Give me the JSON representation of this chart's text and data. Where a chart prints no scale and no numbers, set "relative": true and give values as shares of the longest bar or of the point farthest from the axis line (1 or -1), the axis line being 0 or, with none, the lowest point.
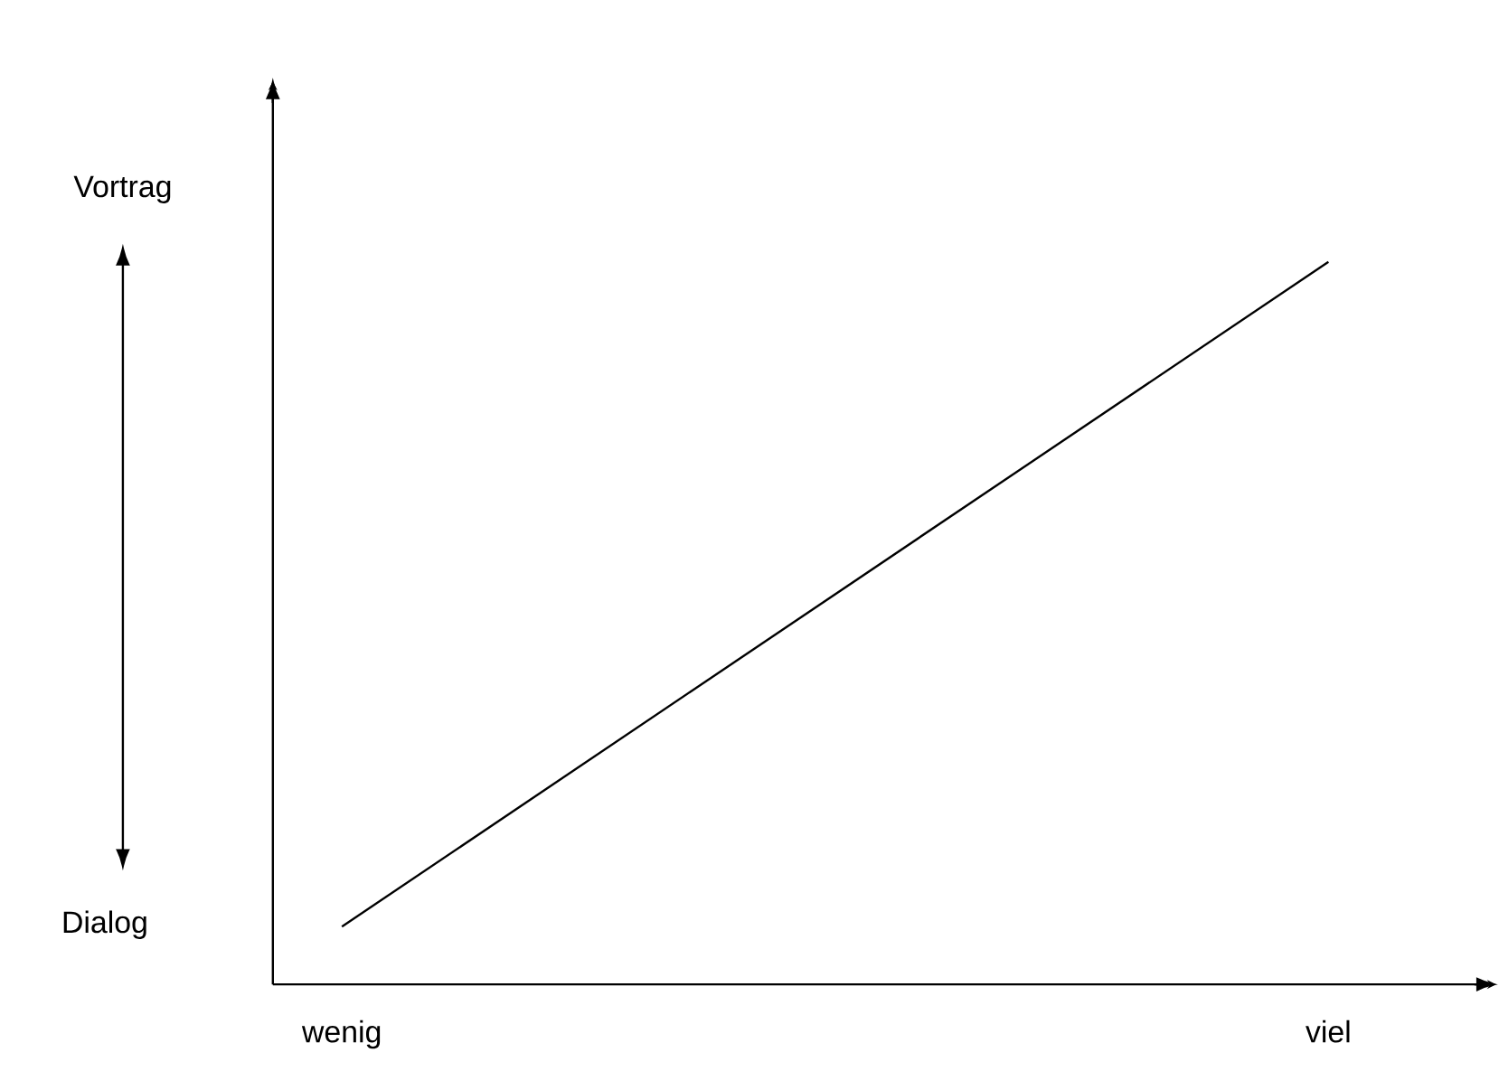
{
  "chart_data": {
    "type": "line",
    "relative": true,
    "categories": [
      "wenig",
      "viel"
    ],
    "series": [
      {
        "color": "#000000",
        "values": [
          0.08,
          1
        ]
      }
    ],
    "annotations": [
      "Vortrag",
      "Dialog"
    ]
  }
}
